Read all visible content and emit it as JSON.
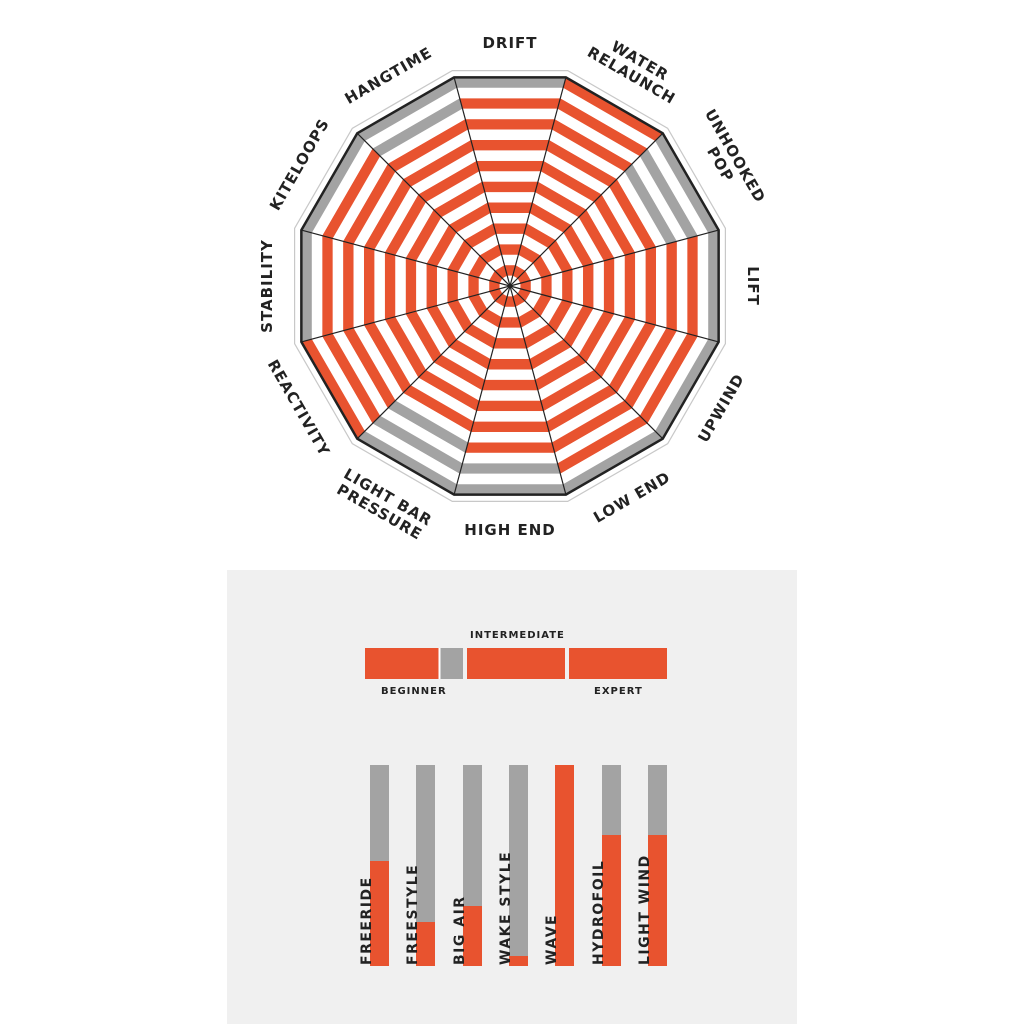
{
  "colors": {
    "orange": "#e8532f",
    "gray": "#a3a3a3",
    "white": "#ffffff",
    "dark": "#222222",
    "panel": "#f0f0f0"
  },
  "chart_data": [
    {
      "type": "radar",
      "max": 10,
      "axes": [
        {
          "label": [
            "DRIFT"
          ],
          "value": 9
        },
        {
          "label": [
            "WATER",
            "RELAUNCH"
          ],
          "value": 10
        },
        {
          "label": [
            "UNHOOKED",
            "POP"
          ],
          "value": 7
        },
        {
          "label": [
            "LIFT"
          ],
          "value": 9
        },
        {
          "label": [
            "UPWIND"
          ],
          "value": 9
        },
        {
          "label": [
            "LOW END"
          ],
          "value": 9
        },
        {
          "label": [
            "HIGH END"
          ],
          "value": 8
        },
        {
          "label": [
            "LIGHT BAR",
            "PRESSURE"
          ],
          "value": 7
        },
        {
          "label": [
            "REACTIVITY"
          ],
          "value": 10
        },
        {
          "label": [
            "STABILITY"
          ],
          "value": 9
        },
        {
          "label": [
            "KITELOOPS"
          ],
          "value": 9
        },
        {
          "label": [
            "HANGTIME"
          ],
          "value": 8
        }
      ]
    },
    {
      "type": "level-bar",
      "labels": {
        "beginner": "BEGINNER",
        "intermediate": "INTERMEDIATE",
        "expert": "EXPERT"
      },
      "segments": [
        {
          "name": "beginner",
          "fill": 0.75
        },
        {
          "name": "intermediate",
          "fill": 1.0
        },
        {
          "name": "expert",
          "fill": 1.0
        }
      ]
    },
    {
      "type": "bar",
      "categories": [
        "FREERIDE",
        "FREESTYLE",
        "BIG AIR",
        "WAKE STYLE",
        "WAVE",
        "HYDROFOIL",
        "LIGHT WIND"
      ],
      "values": [
        52,
        22,
        30,
        5,
        100,
        65,
        65
      ],
      "ylim": [
        0,
        100
      ]
    }
  ]
}
